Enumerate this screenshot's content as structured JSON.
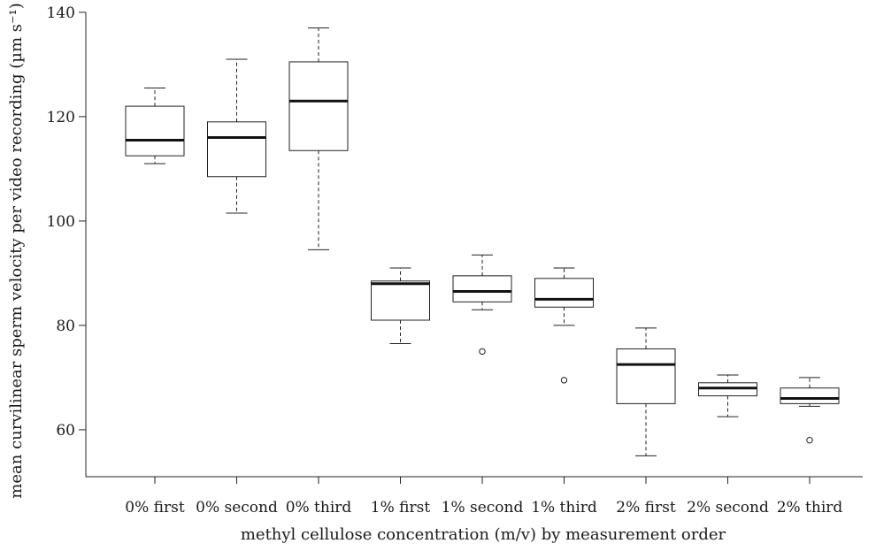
{
  "chart_data": {
    "type": "box",
    "xlabel": "methyl cellulose concentration (m/v) by measurement order",
    "ylabel": "mean curvilinear sperm velocity per video recording (µm s⁻¹)",
    "ylim": [
      51,
      141
    ],
    "yticks": [
      60,
      80,
      100,
      120,
      140
    ],
    "grid": false,
    "categories": [
      "0% first",
      "0% second",
      "0% third",
      "1% first",
      "1% second",
      "1% third",
      "2% first",
      "2% second",
      "2% third"
    ],
    "boxes": [
      {
        "label": "0% first",
        "whisker_low": 111,
        "q1": 112.5,
        "median": 115.5,
        "q3": 122,
        "whisker_high": 125.5,
        "outliers": []
      },
      {
        "label": "0% second",
        "whisker_low": 101.5,
        "q1": 108.5,
        "median": 116,
        "q3": 119,
        "whisker_high": 131,
        "outliers": []
      },
      {
        "label": "0% third",
        "whisker_low": 94.5,
        "q1": 113.5,
        "median": 123,
        "q3": 130.5,
        "whisker_high": 137,
        "outliers": []
      },
      {
        "label": "1% first",
        "whisker_low": 76.5,
        "q1": 81,
        "median": 88,
        "q3": 88.5,
        "whisker_high": 91,
        "outliers": []
      },
      {
        "label": "1% second",
        "whisker_low": 83,
        "q1": 84.5,
        "median": 86.5,
        "q3": 89.5,
        "whisker_high": 93.5,
        "outliers": [
          75
        ]
      },
      {
        "label": "1% third",
        "whisker_low": 80,
        "q1": 83.5,
        "median": 85,
        "q3": 89,
        "whisker_high": 91,
        "outliers": [
          69.5
        ]
      },
      {
        "label": "2% first",
        "whisker_low": 55,
        "q1": 65,
        "median": 72.5,
        "q3": 75.5,
        "whisker_high": 79.5,
        "outliers": []
      },
      {
        "label": "2% second",
        "whisker_low": 62.5,
        "q1": 66.5,
        "median": 68,
        "q3": 69,
        "whisker_high": 70.5,
        "outliers": []
      },
      {
        "label": "2% third",
        "whisker_low": 64.5,
        "q1": 65,
        "median": 66,
        "q3": 68,
        "whisker_high": 70,
        "outliers": [
          58
        ]
      }
    ]
  }
}
